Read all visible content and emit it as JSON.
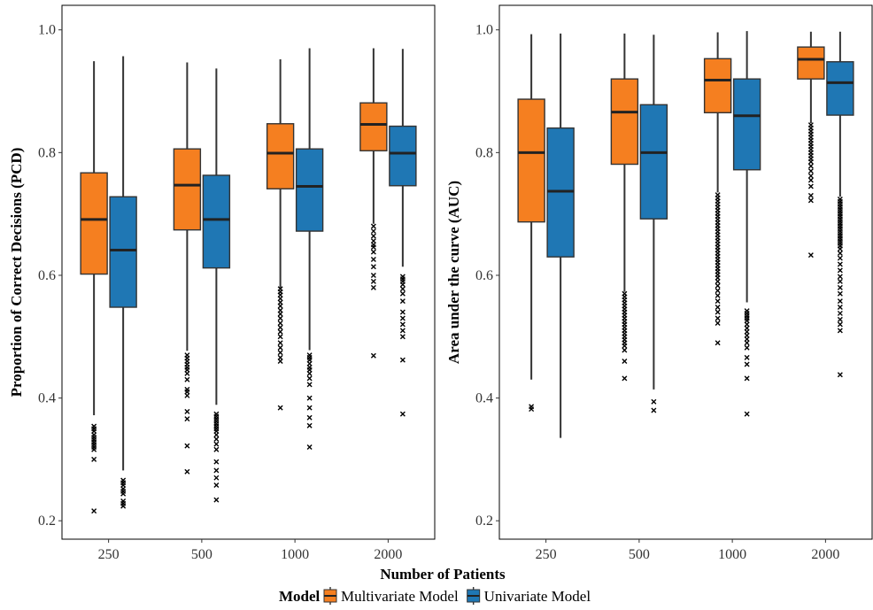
{
  "chart_data": [
    {
      "type": "box",
      "panel": "left",
      "ylabel": "Proportion of Correct Decisions (PCD)",
      "xlabel": "",
      "categories": [
        "250",
        "500",
        "1000",
        "2000"
      ],
      "ylim": [
        0.17,
        1.04
      ],
      "yticks": [
        0.2,
        0.4,
        0.6,
        0.8,
        1.0
      ],
      "ytick_labels": [
        "0.2",
        "0.4",
        "0.6",
        "0.8",
        "1.0"
      ],
      "grid": false,
      "series": [
        {
          "name": "Multivariate Model",
          "color": "#F57F20",
          "boxes": [
            {
              "min": 0.372,
              "q1": 0.602,
              "median": 0.691,
              "q3": 0.767,
              "max": 0.949,
              "outliers": [
                0.354,
                0.35,
                0.346,
                0.34,
                0.336,
                0.332,
                0.328,
                0.324,
                0.32,
                0.316,
                0.3,
                0.216
              ]
            },
            {
              "min": 0.477,
              "q1": 0.674,
              "median": 0.747,
              "q3": 0.806,
              "max": 0.947,
              "outliers": [
                0.47,
                0.465,
                0.46,
                0.455,
                0.45,
                0.446,
                0.44,
                0.43,
                0.414,
                0.41,
                0.404,
                0.378,
                0.366,
                0.322,
                0.28
              ]
            },
            {
              "min": 0.58,
              "q1": 0.741,
              "median": 0.799,
              "q3": 0.847,
              "max": 0.952,
              "outliers": [
                0.578,
                0.573,
                0.568,
                0.562,
                0.556,
                0.55,
                0.543,
                0.537,
                0.53,
                0.522,
                0.515,
                0.508,
                0.5,
                0.49,
                0.482,
                0.474,
                0.466,
                0.46,
                0.384
              ]
            },
            {
              "min": 0.684,
              "q1": 0.803,
              "median": 0.846,
              "q3": 0.881,
              "max": 0.97,
              "outliers": [
                0.68,
                0.672,
                0.664,
                0.656,
                0.65,
                0.646,
                0.638,
                0.626,
                0.614,
                0.6,
                0.59,
                0.58,
                0.469
              ]
            }
          ]
        },
        {
          "name": "Univariate Model",
          "color": "#1F77B4",
          "boxes": [
            {
              "min": 0.282,
              "q1": 0.548,
              "median": 0.641,
              "q3": 0.728,
              "max": 0.957,
              "outliers": [
                0.266,
                0.262,
                0.258,
                0.252,
                0.248,
                0.244,
                0.232,
                0.228,
                0.224
              ]
            },
            {
              "min": 0.389,
              "q1": 0.612,
              "median": 0.691,
              "q3": 0.763,
              "max": 0.937,
              "outliers": [
                0.374,
                0.37,
                0.366,
                0.362,
                0.358,
                0.354,
                0.35,
                0.346,
                0.34,
                0.333,
                0.325,
                0.316,
                0.296,
                0.282,
                0.27,
                0.258,
                0.234
              ]
            },
            {
              "min": 0.478,
              "q1": 0.672,
              "median": 0.745,
              "q3": 0.806,
              "max": 0.97,
              "outliers": [
                0.47,
                0.466,
                0.462,
                0.456,
                0.45,
                0.446,
                0.44,
                0.432,
                0.422,
                0.4,
                0.384,
                0.368,
                0.355,
                0.32
              ]
            },
            {
              "min": 0.614,
              "q1": 0.746,
              "median": 0.799,
              "q3": 0.843,
              "max": 0.969,
              "outliers": [
                0.598,
                0.594,
                0.59,
                0.585,
                0.578,
                0.57,
                0.558,
                0.54,
                0.53,
                0.52,
                0.51,
                0.5,
                0.462,
                0.374
              ]
            }
          ]
        }
      ]
    },
    {
      "type": "box",
      "panel": "right",
      "ylabel": "Area under the curve (AUC)",
      "xlabel": "",
      "categories": [
        "250",
        "500",
        "1000",
        "2000"
      ],
      "ylim": [
        0.17,
        1.04
      ],
      "yticks": [
        0.2,
        0.4,
        0.6,
        0.8,
        1.0
      ],
      "ytick_labels": [
        "0.2",
        "0.4",
        "0.6",
        "0.8",
        "1.0"
      ],
      "grid": false,
      "series": [
        {
          "name": "Multivariate Model",
          "color": "#F57F20",
          "boxes": [
            {
              "min": 0.43,
              "q1": 0.687,
              "median": 0.8,
              "q3": 0.887,
              "max": 0.993,
              "outliers": [
                0.386,
                0.382
              ]
            },
            {
              "min": 0.573,
              "q1": 0.781,
              "median": 0.866,
              "q3": 0.92,
              "max": 0.994,
              "outliers": [
                0.57,
                0.565,
                0.56,
                0.555,
                0.55,
                0.545,
                0.54,
                0.535,
                0.53,
                0.525,
                0.52,
                0.515,
                0.51,
                0.505,
                0.5,
                0.495,
                0.49,
                0.485,
                0.478,
                0.46,
                0.432
              ]
            },
            {
              "min": 0.735,
              "q1": 0.865,
              "median": 0.918,
              "q3": 0.953,
              "max": 0.996,
              "outliers": [
                0.731,
                0.726,
                0.721,
                0.716,
                0.711,
                0.706,
                0.701,
                0.696,
                0.691,
                0.686,
                0.681,
                0.676,
                0.671,
                0.666,
                0.661,
                0.656,
                0.651,
                0.646,
                0.641,
                0.636,
                0.631,
                0.626,
                0.621,
                0.616,
                0.611,
                0.606,
                0.601,
                0.596,
                0.59,
                0.583,
                0.575,
                0.567,
                0.558,
                0.548,
                0.54,
                0.53,
                0.522,
                0.49
              ]
            },
            {
              "min": 0.848,
              "q1": 0.92,
              "median": 0.952,
              "q3": 0.972,
              "max": 0.997,
              "outliers": [
                0.845,
                0.84,
                0.835,
                0.83,
                0.825,
                0.82,
                0.815,
                0.81,
                0.805,
                0.8,
                0.795,
                0.79,
                0.785,
                0.778,
                0.77,
                0.762,
                0.755,
                0.745,
                0.73,
                0.722,
                0.633
              ]
            }
          ]
        },
        {
          "name": "Univariate Model",
          "color": "#1F77B4",
          "boxes": [
            {
              "min": 0.335,
              "q1": 0.63,
              "median": 0.737,
              "q3": 0.84,
              "max": 0.994,
              "outliers": []
            },
            {
              "min": 0.414,
              "q1": 0.692,
              "median": 0.8,
              "q3": 0.878,
              "max": 0.992,
              "outliers": [
                0.394,
                0.38
              ]
            },
            {
              "min": 0.556,
              "q1": 0.772,
              "median": 0.86,
              "q3": 0.92,
              "max": 0.998,
              "outliers": [
                0.542,
                0.538,
                0.534,
                0.53,
                0.526,
                0.52,
                0.514,
                0.508,
                0.502,
                0.496,
                0.49,
                0.482,
                0.466,
                0.455,
                0.432,
                0.374
              ]
            },
            {
              "min": 0.728,
              "q1": 0.861,
              "median": 0.914,
              "q3": 0.948,
              "max": 0.997,
              "outliers": [
                0.724,
                0.72,
                0.716,
                0.712,
                0.708,
                0.704,
                0.7,
                0.696,
                0.692,
                0.688,
                0.684,
                0.68,
                0.676,
                0.672,
                0.668,
                0.664,
                0.66,
                0.656,
                0.652,
                0.648,
                0.643,
                0.636,
                0.628,
                0.618,
                0.608,
                0.598,
                0.59,
                0.58,
                0.57,
                0.558,
                0.548,
                0.538,
                0.528,
                0.52,
                0.51,
                0.438
              ]
            }
          ]
        }
      ]
    }
  ],
  "shared": {
    "xlabel": "Number of Patients",
    "legend": {
      "title": "Model",
      "position": "bottom",
      "entries": [
        {
          "label": "Multivariate Model",
          "color": "#F57F20"
        },
        {
          "label": "Univariate Model",
          "color": "#1F77B4"
        }
      ]
    }
  }
}
